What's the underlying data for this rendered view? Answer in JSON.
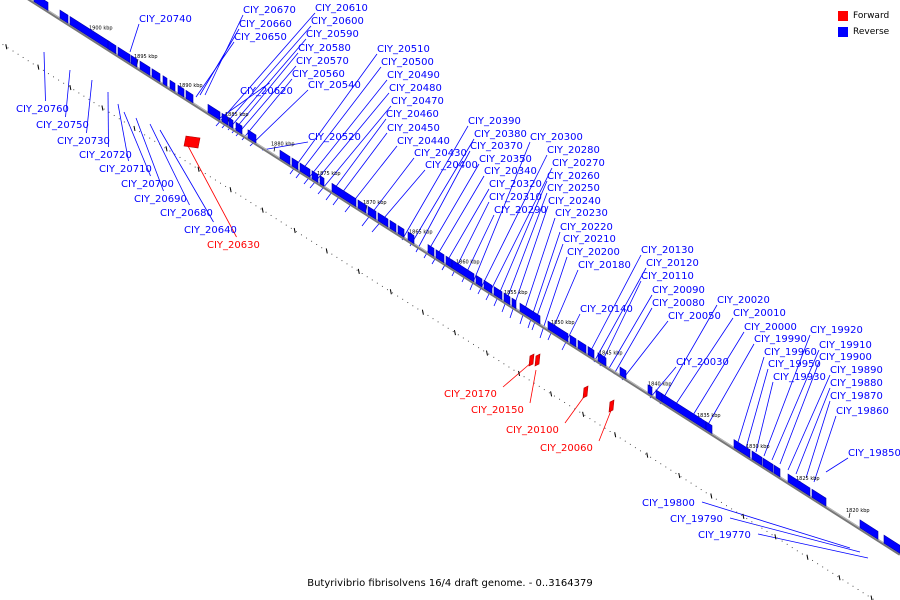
{
  "legend": {
    "forward_label": "Forward",
    "reverse_label": "Reverse",
    "forward_color": "#ff0000",
    "reverse_color": "#0000ff"
  },
  "caption": "Butyrivibrio fibrisolvens 16/4 draft genome. - 0..3164379",
  "ticks": [
    "1900 kbp",
    "1895 kbp",
    "1890 kbp",
    "1885 kbp",
    "1880 kbp",
    "1875 kbp",
    "1870 kbp",
    "1865 kbp",
    "1860 kbp",
    "1855 kbp",
    "1850 kbp",
    "1845 kbp",
    "1840 kbp",
    "1835 kbp",
    "1830 kbp",
    "1825 kbp",
    "1820 kbp"
  ],
  "genes": [
    {
      "name": "CIY_20740",
      "strand": "reverse"
    },
    {
      "name": "CIY_20670",
      "strand": "reverse"
    },
    {
      "name": "CIY_20660",
      "strand": "reverse"
    },
    {
      "name": "CIY_20650",
      "strand": "reverse"
    },
    {
      "name": "CIY_20610",
      "strand": "reverse"
    },
    {
      "name": "CIY_20600",
      "strand": "reverse"
    },
    {
      "name": "CIY_20590",
      "strand": "reverse"
    },
    {
      "name": "CIY_20580",
      "strand": "reverse"
    },
    {
      "name": "CIY_20570",
      "strand": "reverse"
    },
    {
      "name": "CIY_20560",
      "strand": "reverse"
    },
    {
      "name": "CIY_20540",
      "strand": "reverse"
    },
    {
      "name": "CIY_20620",
      "strand": "reverse"
    },
    {
      "name": "CIY_20520",
      "strand": "reverse"
    },
    {
      "name": "CIY_20510",
      "strand": "reverse"
    },
    {
      "name": "CIY_20500",
      "strand": "reverse"
    },
    {
      "name": "CIY_20490",
      "strand": "reverse"
    },
    {
      "name": "CIY_20480",
      "strand": "reverse"
    },
    {
      "name": "CIY_20470",
      "strand": "reverse"
    },
    {
      "name": "CIY_20460",
      "strand": "reverse"
    },
    {
      "name": "CIY_20450",
      "strand": "reverse"
    },
    {
      "name": "CIY_20440",
      "strand": "reverse"
    },
    {
      "name": "CIY_20430",
      "strand": "reverse"
    },
    {
      "name": "CIY_20400",
      "strand": "reverse"
    },
    {
      "name": "CIY_20390",
      "strand": "reverse"
    },
    {
      "name": "CIY_20380",
      "strand": "reverse"
    },
    {
      "name": "CIY_20370",
      "strand": "reverse"
    },
    {
      "name": "CIY_20350",
      "strand": "reverse"
    },
    {
      "name": "CIY_20340",
      "strand": "reverse"
    },
    {
      "name": "CIY_20320",
      "strand": "reverse"
    },
    {
      "name": "CIY_20310",
      "strand": "reverse"
    },
    {
      "name": "CIY_20290",
      "strand": "reverse"
    },
    {
      "name": "CIY_20300",
      "strand": "reverse"
    },
    {
      "name": "CIY_20280",
      "strand": "reverse"
    },
    {
      "name": "CIY_20270",
      "strand": "reverse"
    },
    {
      "name": "CIY_20260",
      "strand": "reverse"
    },
    {
      "name": "CIY_20250",
      "strand": "reverse"
    },
    {
      "name": "CIY_20240",
      "strand": "reverse"
    },
    {
      "name": "CIY_20230",
      "strand": "reverse"
    },
    {
      "name": "CIY_20220",
      "strand": "reverse"
    },
    {
      "name": "CIY_20210",
      "strand": "reverse"
    },
    {
      "name": "CIY_20200",
      "strand": "reverse"
    },
    {
      "name": "CIY_20180",
      "strand": "reverse"
    },
    {
      "name": "CIY_20140",
      "strand": "reverse"
    },
    {
      "name": "CIY_20130",
      "strand": "reverse"
    },
    {
      "name": "CIY_20120",
      "strand": "reverse"
    },
    {
      "name": "CIY_20110",
      "strand": "reverse"
    },
    {
      "name": "CIY_20090",
      "strand": "reverse"
    },
    {
      "name": "CIY_20080",
      "strand": "reverse"
    },
    {
      "name": "CIY_20050",
      "strand": "reverse"
    },
    {
      "name": "CIY_20030",
      "strand": "reverse"
    },
    {
      "name": "CIY_20020",
      "strand": "reverse"
    },
    {
      "name": "CIY_20010",
      "strand": "reverse"
    },
    {
      "name": "CIY_20000",
      "strand": "reverse"
    },
    {
      "name": "CIY_19990",
      "strand": "reverse"
    },
    {
      "name": "CIY_19960",
      "strand": "reverse"
    },
    {
      "name": "CIY_19950",
      "strand": "reverse"
    },
    {
      "name": "CIY_19930",
      "strand": "reverse"
    },
    {
      "name": "CIY_19920",
      "strand": "reverse"
    },
    {
      "name": "CIY_19910",
      "strand": "reverse"
    },
    {
      "name": "CIY_19900",
      "strand": "reverse"
    },
    {
      "name": "CIY_19890",
      "strand": "reverse"
    },
    {
      "name": "CIY_19880",
      "strand": "reverse"
    },
    {
      "name": "CIY_19870",
      "strand": "reverse"
    },
    {
      "name": "CIY_19860",
      "strand": "reverse"
    },
    {
      "name": "CIY_19850",
      "strand": "reverse"
    },
    {
      "name": "CIY_20760",
      "strand": "reverse"
    },
    {
      "name": "CIY_20750",
      "strand": "reverse"
    },
    {
      "name": "CIY_20730",
      "strand": "reverse"
    },
    {
      "name": "CIY_20720",
      "strand": "reverse"
    },
    {
      "name": "CIY_20710",
      "strand": "reverse"
    },
    {
      "name": "CIY_20700",
      "strand": "reverse"
    },
    {
      "name": "CIY_20690",
      "strand": "reverse"
    },
    {
      "name": "CIY_20680",
      "strand": "reverse"
    },
    {
      "name": "CIY_20640",
      "strand": "reverse"
    },
    {
      "name": "CIY_20630",
      "strand": "forward"
    },
    {
      "name": "CIY_20170",
      "strand": "forward"
    },
    {
      "name": "CIY_20150",
      "strand": "forward"
    },
    {
      "name": "CIY_20100",
      "strand": "forward"
    },
    {
      "name": "CIY_20060",
      "strand": "forward"
    },
    {
      "name": "CIY_19800",
      "strand": "reverse"
    },
    {
      "name": "CIY_19790",
      "strand": "reverse"
    },
    {
      "name": "CIY_19770",
      "strand": "reverse"
    }
  ]
}
